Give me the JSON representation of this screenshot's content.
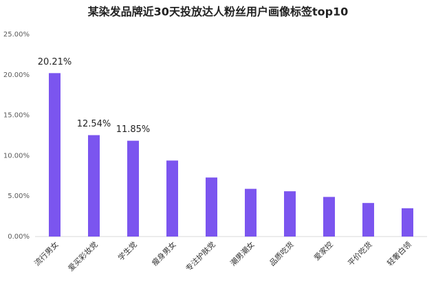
{
  "chart_data": {
    "type": "bar",
    "title": "某染发品牌近30天投放达人粉丝用户画像标签top10",
    "categories": [
      "流行男女",
      "爱买彩妆党",
      "学生党",
      "瘦身男女",
      "专注护肤党",
      "潮男潮女",
      "品质吃货",
      "爱家控",
      "平价吃货",
      "轻奢白领"
    ],
    "values": [
      20.21,
      12.54,
      11.85,
      9.4,
      7.3,
      5.9,
      5.6,
      4.9,
      4.15,
      3.5
    ],
    "value_labels": [
      "20.21%",
      "12.54%",
      "11.85%",
      null,
      null,
      null,
      null,
      null,
      null,
      null
    ],
    "color": "#7b55ef",
    "ylim": [
      0,
      25
    ],
    "yticks": [
      {
        "value": 0,
        "label": "0.00%"
      },
      {
        "value": 5,
        "label": "5.00%"
      },
      {
        "value": 10,
        "label": "10.00%"
      },
      {
        "value": 15,
        "label": "15.00%"
      },
      {
        "value": 20,
        "label": "20.00%"
      },
      {
        "value": 25,
        "label": "25.00%"
      }
    ],
    "grid": false
  }
}
